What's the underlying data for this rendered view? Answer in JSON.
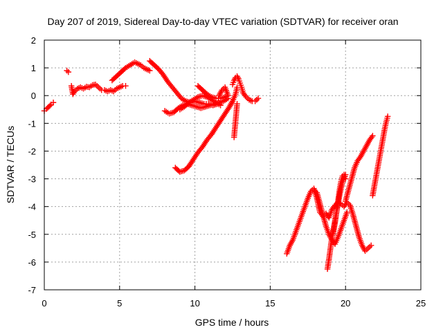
{
  "chart_data": {
    "type": "scatter",
    "title": "Day 207 of 2019, Sidereal Day-to-day VTEC variation (SDTVAR) for receiver oran",
    "xlabel": "GPS time / hours",
    "ylabel": "SDTVAR / TECUs",
    "xlim": [
      0,
      25
    ],
    "ylim": [
      -7,
      2
    ],
    "xticks": [
      0,
      5,
      10,
      15,
      20,
      25
    ],
    "yticks": [
      -7,
      -6,
      -5,
      -4,
      -3,
      -2,
      -1,
      0,
      1,
      2
    ],
    "grid": true,
    "marker": "plus",
    "color": "#ff0000",
    "series": [
      {
        "x": [
          0.0,
          0.15,
          0.3,
          0.45,
          0.6
        ],
        "y": [
          -0.55,
          -0.48,
          -0.4,
          -0.32,
          -0.25
        ]
      },
      {
        "x": [
          1.5,
          1.6
        ],
        "y": [
          0.9,
          0.85
        ]
      },
      {
        "x": [
          1.8,
          1.9,
          2.0,
          2.2,
          2.4,
          2.6,
          2.8,
          3.0,
          3.2,
          3.4,
          3.6,
          3.8,
          4.0,
          4.2,
          4.4,
          4.6,
          4.8,
          5.0,
          5.2,
          5.4
        ],
        "y": [
          0.35,
          0.05,
          0.15,
          0.25,
          0.3,
          0.25,
          0.32,
          0.3,
          0.38,
          0.4,
          0.3,
          0.2,
          0.2,
          0.15,
          0.2,
          0.15,
          0.25,
          0.3,
          0.35,
          0.35
        ]
      },
      {
        "x": [
          4.5,
          4.8,
          5.1,
          5.4,
          5.7,
          6.0,
          6.2,
          6.4,
          6.6,
          6.8,
          7.0
        ],
        "y": [
          0.55,
          0.7,
          0.85,
          1.0,
          1.1,
          1.2,
          1.15,
          1.1,
          1.0,
          0.95,
          0.9
        ]
      },
      {
        "x": [
          7.0,
          7.3,
          7.6,
          7.9,
          8.2,
          8.5,
          8.8,
          9.1,
          9.4,
          9.7,
          10.0,
          10.3,
          10.6,
          10.9,
          11.2,
          11.5,
          11.8
        ],
        "y": [
          1.25,
          1.1,
          0.95,
          0.75,
          0.5,
          0.3,
          0.1,
          -0.1,
          -0.2,
          -0.25,
          -0.2,
          -0.25,
          -0.3,
          -0.3,
          -0.35,
          -0.3,
          -0.2
        ]
      },
      {
        "x": [
          8.0,
          8.3,
          8.6,
          8.9,
          9.2,
          9.5,
          9.8,
          10.1,
          10.4,
          10.7,
          11.0,
          11.3,
          11.6,
          11.9,
          12.2
        ],
        "y": [
          -0.55,
          -0.65,
          -0.6,
          -0.45,
          -0.35,
          -0.3,
          -0.35,
          -0.4,
          -0.45,
          -0.4,
          -0.35,
          -0.3,
          -0.25,
          -0.2,
          -0.1
        ]
      },
      {
        "x": [
          9.0,
          9.3,
          9.6,
          9.9,
          10.2,
          10.5,
          10.8,
          11.1,
          11.4,
          11.7
        ],
        "y": [
          -0.5,
          -0.4,
          -0.25,
          -0.15,
          -0.05,
          0.0,
          -0.05,
          -0.15,
          -0.25,
          -0.35
        ]
      },
      {
        "x": [
          10.2,
          10.5,
          10.8,
          11.1,
          11.4,
          11.7,
          12.0,
          12.2
        ],
        "y": [
          0.35,
          0.2,
          0.05,
          -0.05,
          -0.1,
          -0.1,
          -0.05,
          0.0
        ]
      },
      {
        "x": [
          11.6,
          11.8,
          12.0,
          12.2
        ],
        "y": [
          0.0,
          0.2,
          0.3,
          0.0
        ]
      },
      {
        "x": [
          8.7,
          9.0,
          9.3,
          9.6,
          9.9,
          10.2,
          10.5,
          10.8,
          11.1,
          11.4,
          11.7,
          12.0,
          12.3,
          12.5,
          12.7,
          12.8
        ],
        "y": [
          -2.6,
          -2.75,
          -2.7,
          -2.55,
          -2.3,
          -2.05,
          -1.85,
          -1.6,
          -1.4,
          -1.15,
          -0.9,
          -0.65,
          -0.4,
          -0.2,
          0.05,
          0.3
        ]
      },
      {
        "x": [
          12.5,
          12.6,
          12.7,
          12.8,
          12.9,
          13.0,
          13.1,
          13.2,
          13.4,
          13.6,
          13.8,
          14.0,
          14.2
        ],
        "y": [
          0.4,
          0.55,
          0.65,
          0.7,
          0.6,
          0.45,
          0.3,
          0.1,
          -0.05,
          -0.15,
          -0.2,
          -0.2,
          -0.1
        ]
      },
      {
        "x": [
          12.6,
          12.65,
          12.7,
          12.75,
          12.8
        ],
        "y": [
          -1.5,
          -1.2,
          -0.9,
          -0.6,
          -0.3
        ]
      },
      {
        "x": [
          16.1,
          16.3,
          16.5,
          16.7,
          16.9,
          17.1,
          17.3,
          17.5,
          17.7,
          17.9,
          18.1,
          18.3,
          18.5,
          18.7,
          18.9,
          19.1,
          19.3,
          19.5,
          19.7,
          19.9,
          20.1,
          20.3,
          20.5,
          20.7,
          20.9,
          21.1,
          21.3,
          21.5,
          21.7
        ],
        "y": [
          -5.7,
          -5.4,
          -5.2,
          -4.9,
          -4.6,
          -4.3,
          -4.0,
          -3.7,
          -3.45,
          -3.35,
          -3.7,
          -4.2,
          -4.35,
          -4.25,
          -4.4,
          -4.1,
          -3.95,
          -3.85,
          -3.9,
          -4.0,
          -3.85,
          -3.95,
          -4.3,
          -4.7,
          -5.1,
          -5.4,
          -5.6,
          -5.5,
          -5.4
        ]
      },
      {
        "x": [
          17.9,
          18.1,
          18.3,
          18.5,
          18.7,
          18.9,
          19.1,
          19.3,
          19.5,
          19.7,
          19.9,
          20.1
        ],
        "y": [
          -3.4,
          -3.5,
          -3.9,
          -4.3,
          -4.7,
          -5.0,
          -5.2,
          -5.35,
          -5.1,
          -4.8,
          -4.5,
          -4.2
        ]
      },
      {
        "x": [
          19.1,
          19.2,
          19.3,
          19.4,
          19.5,
          19.6,
          19.7,
          19.8,
          19.9,
          20.0
        ],
        "y": [
          -5.1,
          -4.9,
          -4.6,
          -4.2,
          -3.8,
          -3.4,
          -3.1,
          -2.9,
          -2.85,
          -3.0
        ]
      },
      {
        "x": [
          18.8,
          18.9,
          19.0,
          19.1,
          19.2,
          19.3,
          19.4,
          19.6,
          19.8,
          20.0
        ],
        "y": [
          -6.25,
          -5.9,
          -5.5,
          -5.1,
          -4.8,
          -4.5,
          -4.2,
          -3.6,
          -3.1,
          -2.85
        ]
      },
      {
        "x": [
          20.0,
          20.2,
          20.4,
          20.6,
          20.8,
          21.0,
          21.2,
          21.4,
          21.6,
          21.8
        ],
        "y": [
          -3.8,
          -3.4,
          -3.0,
          -2.6,
          -2.35,
          -2.2,
          -2.0,
          -1.8,
          -1.6,
          -1.45
        ]
      },
      {
        "x": [
          21.8,
          21.9,
          22.0,
          22.1,
          22.2,
          22.3,
          22.4,
          22.5,
          22.6,
          22.7,
          22.8
        ],
        "y": [
          -3.6,
          -3.3,
          -3.0,
          -2.7,
          -2.4,
          -2.1,
          -1.8,
          -1.5,
          -1.2,
          -0.95,
          -0.75
        ]
      }
    ]
  }
}
